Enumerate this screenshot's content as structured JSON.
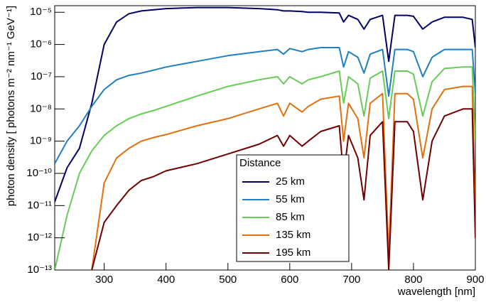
{
  "chart_data": {
    "type": "line",
    "ylabel": "photon density [ photons m⁻² nm⁻¹ GeV⁻¹]",
    "xlabel": "wavelength [nm]",
    "legend_title": "Distance",
    "legend": "bottom-center",
    "log_y": true,
    "xlim": [
      220,
      900
    ],
    "ylim": [
      1e-13,
      1.6e-05
    ],
    "xticks": [
      300,
      400,
      500,
      600,
      700,
      800,
      900
    ],
    "yticks": [
      {
        "value": 1e-13,
        "label": "10⁻¹³"
      },
      {
        "value": 1e-12,
        "label": "10⁻¹²"
      },
      {
        "value": 1e-11,
        "label": "10⁻¹¹"
      },
      {
        "value": 1e-10,
        "label": "10⁻¹⁰"
      },
      {
        "value": 1e-09,
        "label": "10⁻⁹"
      },
      {
        "value": 1e-08,
        "label": "10⁻⁸"
      },
      {
        "value": 1e-07,
        "label": "10⁻⁷"
      },
      {
        "value": 1e-06,
        "label": "10⁻⁶"
      },
      {
        "value": 1e-05,
        "label": "10⁻⁵"
      }
    ],
    "x": [
      220,
      240,
      260,
      280,
      300,
      320,
      340,
      360,
      380,
      400,
      450,
      500,
      550,
      580,
      590,
      600,
      620,
      630,
      650,
      680,
      687,
      695,
      710,
      720,
      730,
      750,
      760,
      770,
      790,
      800,
      815,
      830,
      850,
      880,
      895,
      900
    ],
    "series": [
      {
        "name": "25 km",
        "color": "#000066",
        "values": [
          1.3e-11,
          1.5e-10,
          6e-10,
          1.5e-08,
          1e-06,
          5e-06,
          9e-06,
          1.1e-05,
          1.2e-05,
          1.3e-05,
          1.4e-05,
          1.4e-05,
          1.3e-05,
          1.2e-05,
          1.1e-05,
          1.1e-05,
          1.05e-05,
          1e-05,
          1e-05,
          9.5e-06,
          5e-06,
          8e-06,
          6e-06,
          3e-06,
          6e-06,
          8e-06,
          3e-07,
          8e-06,
          8e-06,
          7.5e-06,
          3e-06,
          5e-06,
          7e-06,
          7e-06,
          6e-06,
          8e-07
        ]
      },
      {
        "name": "55 km",
        "color": "#1f7fc0",
        "values": [
          2e-10,
          1e-09,
          3e-09,
          1.2e-08,
          4e-08,
          8e-08,
          1.1e-07,
          1.3e-07,
          1.6e-07,
          2e-07,
          3e-07,
          4.5e-07,
          6e-07,
          7e-07,
          5e-07,
          7.5e-07,
          6e-07,
          7e-07,
          8e-07,
          8e-07,
          2e-07,
          6e-07,
          4e-07,
          1.3e-07,
          5e-07,
          7e-07,
          2.5e-08,
          7e-07,
          7e-07,
          6e-07,
          1e-07,
          4e-07,
          7e-07,
          7e-07,
          7e-07,
          3e-08
        ]
      },
      {
        "name": "85 km",
        "color": "#66cc55",
        "values": [
          1e-13,
          5e-12,
          1e-10,
          5e-10,
          1.5e-09,
          3e-09,
          5e-09,
          7e-09,
          9e-09,
          1.2e-08,
          2.5e-08,
          5e-08,
          8e-08,
          1e-07,
          6e-08,
          1e-07,
          6e-08,
          8e-08,
          1e-07,
          1.5e-07,
          1.5e-08,
          1e-07,
          6e-08,
          6e-09,
          9e-08,
          1.5e-07,
          5e-09,
          1.5e-07,
          1.5e-07,
          1.2e-07,
          6e-09,
          7e-08,
          1.8e-07,
          2e-07,
          2e-07,
          1e-09
        ]
      },
      {
        "name": "135 km",
        "color": "#e07010",
        "values": [
          null,
          null,
          null,
          1e-13,
          5e-11,
          3e-10,
          6e-10,
          1e-09,
          1.3e-09,
          1.6e-09,
          3e-09,
          5e-09,
          1e-08,
          1.5e-08,
          6e-09,
          1.5e-08,
          8e-09,
          1.2e-08,
          2e-08,
          2.5e-08,
          1e-09,
          1.5e-08,
          5e-09,
          3e-10,
          1.5e-08,
          3e-08,
          3e-13,
          3e-08,
          3e-08,
          2e-08,
          3e-10,
          1e-08,
          4e-08,
          5e-08,
          5e-08,
          5e-12
        ]
      },
      {
        "name": "195 km",
        "color": "#700000",
        "values": [
          null,
          null,
          null,
          1e-13,
          3e-12,
          1e-11,
          3e-11,
          6e-11,
          8e-11,
          1.2e-10,
          2e-10,
          4e-10,
          8e-10,
          1.5e-09,
          7e-10,
          1.5e-09,
          7e-10,
          1e-09,
          2e-09,
          3e-09,
          8e-11,
          1.5e-09,
          3e-10,
          1.5e-11,
          1.5e-09,
          4e-09,
          1e-13,
          4e-09,
          4e-09,
          2e-09,
          1.5e-11,
          1e-09,
          6e-09,
          1e-08,
          1e-08,
          1e-12
        ]
      }
    ]
  }
}
